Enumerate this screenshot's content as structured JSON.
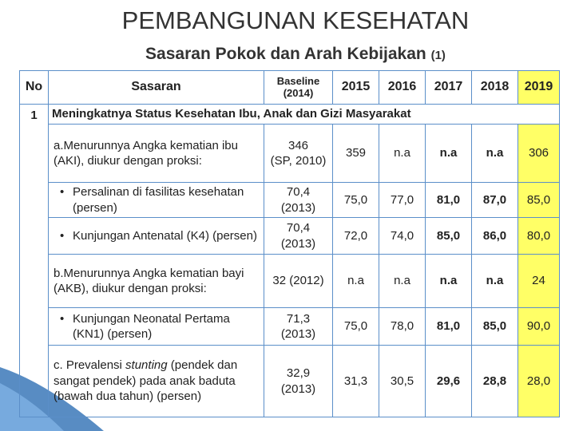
{
  "header": {
    "title": "PEMBANGUNAN KESEHATAN",
    "subtitle": "Sasaran Pokok dan Arah Kebijakan",
    "subtitle_note": "(1)"
  },
  "table": {
    "columns": [
      "No",
      "Sasaran",
      "Baseline\n(2014)",
      "2015",
      "2016",
      "2017",
      "2018",
      "2019"
    ],
    "group": {
      "no": "1",
      "label": "Meningkatnya Status Kesehatan Ibu, Anak dan Gizi Masyarakat"
    },
    "rows": [
      {
        "label": "a.Menurunnya Angka kematian ibu (AKI), diukur dengan proksi:",
        "baseline": "346\n(SP, 2010)",
        "values": [
          "359",
          "n.a",
          "n.a",
          "n.a",
          "306"
        ]
      },
      {
        "label": "Persalinan di fasilitas kesehatan (persen)",
        "bullet": true,
        "baseline": "70,4\n(2013)",
        "values": [
          "75,0",
          "77,0",
          "81,0",
          "87,0",
          "85,0"
        ]
      },
      {
        "label": "Kunjungan Antenatal (K4) (persen)",
        "bullet": true,
        "baseline": "70,4\n(2013)",
        "values": [
          "72,0",
          "74,0",
          "85,0",
          "86,0",
          "80,0"
        ]
      },
      {
        "label": "b.Menurunnya Angka kematian bayi (AKB), diukur dengan proksi:",
        "baseline": "32 (2012)",
        "values": [
          "n.a",
          "n.a",
          "n.a",
          "n.a",
          "24"
        ]
      },
      {
        "label": "Kunjungan Neonatal Pertama (KN1) (persen)",
        "bullet": true,
        "baseline": "71,3\n(2013)",
        "values": [
          "75,0",
          "78,0",
          "81,0",
          "85,0",
          "90,0"
        ]
      },
      {
        "label_parts": [
          "c. Prevalensi ",
          "stunting",
          " (pendek dan sangat pendek) pada anak baduta (bawah dua tahun) (persen)"
        ],
        "baseline": "32,9\n(2013)",
        "values": [
          "31,3",
          "30,5",
          "29,6",
          "28,8",
          "28,0"
        ]
      }
    ]
  }
}
